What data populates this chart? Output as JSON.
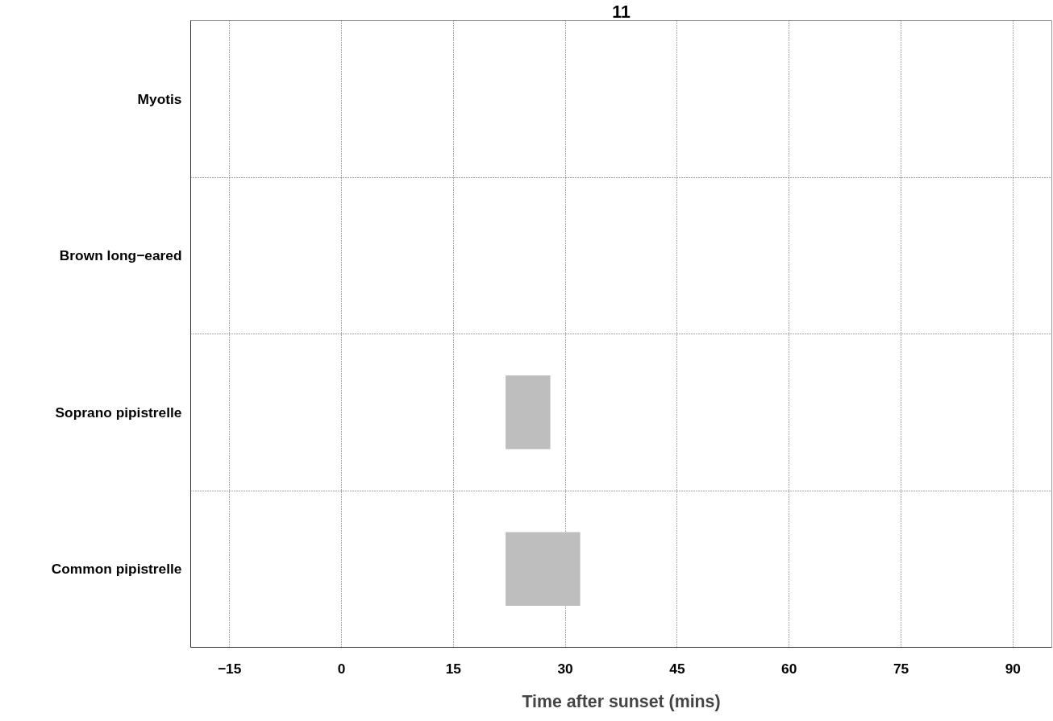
{
  "chart_data": {
    "type": "bar",
    "orientation": "horizontal",
    "title": "11",
    "xlabel": "Time after sunset (mins)",
    "categories": [
      "Myotis",
      "Brown long−eared",
      "Soprano pipistrelle",
      "Common pipistrelle"
    ],
    "base": [
      null,
      null,
      22,
      22
    ],
    "values": [
      null,
      null,
      6,
      10
    ],
    "color": "#bebebe",
    "xlim": [
      -20.2,
      95.2
    ],
    "xticks": [
      {
        "value": -15,
        "label": "−15"
      },
      0,
      15,
      30,
      45,
      60,
      75,
      90
    ],
    "grid": true
  }
}
